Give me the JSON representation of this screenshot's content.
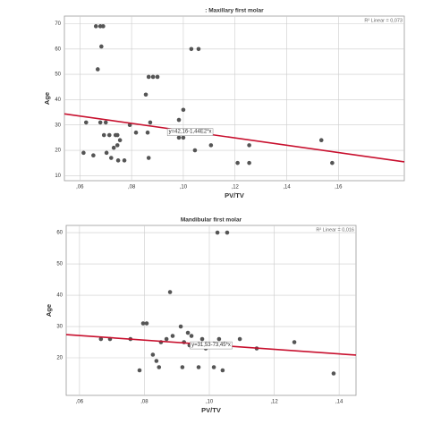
{
  "chart_data": [
    {
      "type": "scatter",
      "title": ": Maxillary first molar",
      "x_label": "PV/TV",
      "y_label": "Age",
      "r2_label": "R² Linear = 0,073",
      "color": "#555555",
      "grid": true,
      "x": [
        0.0662,
        0.0679,
        0.069,
        0.0683,
        0.0669,
        0.0624,
        0.0614,
        0.0652,
        0.0679,
        0.07,
        0.0693,
        0.0714,
        0.0703,
        0.0721,
        0.0731,
        0.0738,
        0.0745,
        0.0745,
        0.0748,
        0.0755,
        0.0772,
        0.0793,
        0.0817,
        0.0855,
        0.0862,
        0.0872,
        0.0866,
        0.0883,
        0.09,
        0.0866,
        0.0983,
        0.1,
        0.0983,
        0.1,
        0.1031,
        0.1059,
        0.1045,
        0.1107,
        0.121,
        0.1255,
        0.1255,
        0.1534,
        0.1576
      ],
      "values": [
        69,
        69,
        69,
        61,
        52,
        31,
        19,
        18,
        31,
        31,
        26,
        26,
        19,
        17,
        21,
        26,
        26,
        22,
        16,
        24,
        16,
        30,
        27,
        42,
        27,
        31,
        49,
        49,
        49,
        17,
        32,
        36,
        25,
        25,
        60,
        60,
        20,
        22,
        15,
        22,
        15,
        24,
        15
      ],
      "fit": {
        "intercept": 42.16,
        "slope": -144,
        "label": "y=42,16-1,44E2*x",
        "color": "#c8102e"
      },
      "xlim": [
        0.054,
        0.1855
      ],
      "ylim": [
        8,
        73
      ],
      "xticks": [
        {
          "value": 0.06,
          "label": ",06"
        },
        {
          "value": 0.08,
          "label": ",08"
        },
        {
          "value": 0.1,
          "label": ",10"
        },
        {
          "value": 0.12,
          "label": ",12"
        },
        {
          "value": 0.14,
          "label": ",14"
        },
        {
          "value": 0.16,
          "label": ",16"
        }
      ],
      "yticks": [
        10,
        20,
        30,
        40,
        50,
        60,
        70
      ]
    },
    {
      "type": "scatter",
      "title": "Mandibular first molar",
      "x_label": "PV/TV",
      "y_label": "Age",
      "r2_label": "R² Linear = 0,016",
      "color": "#555555",
      "grid": true,
      "x": [
        0.0666,
        0.0694,
        0.0757,
        0.0785,
        0.0796,
        0.0807,
        0.0826,
        0.0837,
        0.0845,
        0.0851,
        0.0879,
        0.0868,
        0.0887,
        0.0912,
        0.0917,
        0.0922,
        0.0934,
        0.0939,
        0.0945,
        0.0967,
        0.0978,
        0.0989,
        0.1014,
        0.103,
        0.1041,
        0.1025,
        0.1055,
        0.1094,
        0.1146,
        0.1262,
        0.1383
      ],
      "values": [
        26,
        26,
        26,
        16,
        31,
        31,
        21,
        19,
        17,
        25,
        41,
        26,
        27,
        30,
        17,
        25,
        28,
        24,
        27,
        17,
        26,
        23,
        17,
        26,
        16,
        60,
        60,
        26,
        23,
        25,
        15
      ],
      "fit": {
        "intercept": 31.53,
        "slope": -73.45,
        "label": "y=31,53-73,45*x",
        "color": "#c8102e"
      },
      "xlim": [
        0.0559,
        0.1452
      ],
      "ylim": [
        8,
        62.3
      ],
      "xticks": [
        {
          "value": 0.06,
          "label": ",06"
        },
        {
          "value": 0.08,
          "label": ",08"
        },
        {
          "value": 0.1,
          "label": ",10"
        },
        {
          "value": 0.12,
          "label": ",12"
        },
        {
          "value": 0.14,
          "label": ",14"
        }
      ],
      "yticks": [
        20,
        30,
        40,
        50,
        60
      ]
    }
  ]
}
